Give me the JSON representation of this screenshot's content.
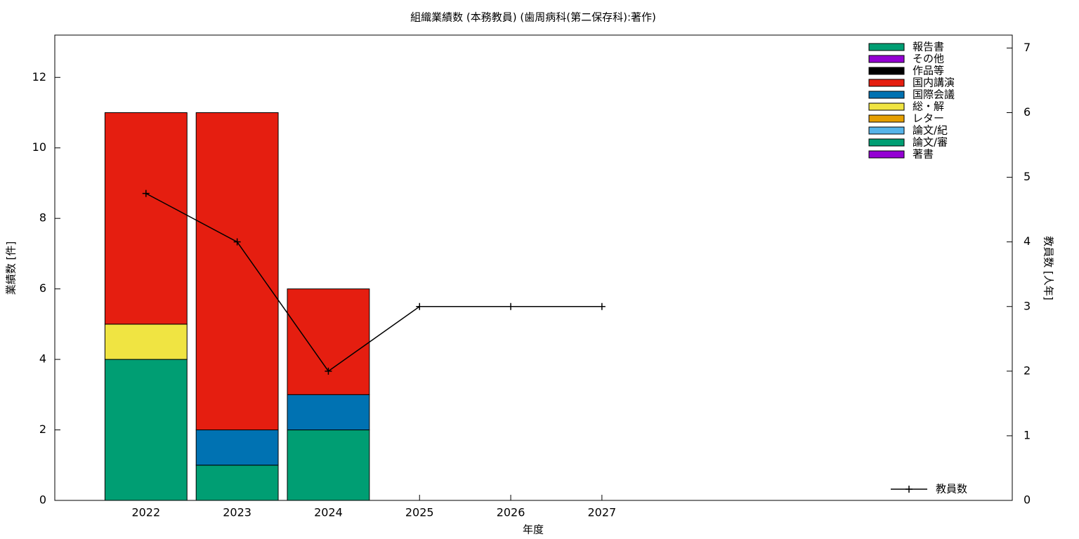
{
  "chart_data": {
    "type": "bar",
    "title": "組織業績数 (本務教員) (歯周病科(第二保存科):著作)",
    "x_label": "年度",
    "y_label": "業績数 [件]",
    "y2_label": "教員数 [人年]",
    "x": [
      2022,
      2023,
      2024,
      2025,
      2026,
      2027
    ],
    "xlim": [
      2021,
      2031.5
    ],
    "xticks": [
      2022,
      2023,
      2024,
      2025,
      2026,
      2027
    ],
    "ylim": [
      0,
      13.2
    ],
    "yticks": [
      0,
      2,
      4,
      6,
      8,
      10,
      12
    ],
    "y2lim": [
      0,
      7.2
    ],
    "y2ticks": [
      0,
      1,
      2,
      3,
      4,
      5,
      6,
      7
    ],
    "legend": "top-right",
    "series": [
      {
        "name": "報告書",
        "color": "#009e73",
        "values": [
          0,
          0,
          0,
          0,
          0,
          0
        ]
      },
      {
        "name": "その他",
        "color": "#9400d3",
        "values": [
          0,
          0,
          0,
          0,
          0,
          0
        ]
      },
      {
        "name": "作品等",
        "color": "#000000",
        "values": [
          0,
          0,
          0,
          0,
          0,
          0
        ]
      },
      {
        "name": "国内講演",
        "color": "#e51e10",
        "values": [
          6,
          9,
          3,
          0,
          0,
          0
        ]
      },
      {
        "name": "国際会議",
        "color": "#0072b2",
        "values": [
          0,
          1,
          1,
          0,
          0,
          0
        ]
      },
      {
        "name": "総・解",
        "color": "#f0e442",
        "values": [
          1,
          0,
          0,
          0,
          0,
          0
        ]
      },
      {
        "name": "レター",
        "color": "#e69f00",
        "values": [
          0,
          0,
          0,
          0,
          0,
          0
        ]
      },
      {
        "name": "論文/紀",
        "color": "#56b4e9",
        "values": [
          0,
          0,
          0,
          0,
          0,
          0
        ]
      },
      {
        "name": "論文/審",
        "color": "#009e73",
        "values": [
          4,
          1,
          2,
          0,
          0,
          0
        ]
      },
      {
        "name": "著書",
        "color": "#9400d3",
        "values": [
          0,
          0,
          0,
          0,
          0,
          0
        ]
      },
      {
        "name": "教員数",
        "color": "#000000",
        "axis": "y2",
        "type": "line",
        "values": [
          4.75,
          4,
          2,
          3,
          3,
          3
        ]
      }
    ]
  }
}
